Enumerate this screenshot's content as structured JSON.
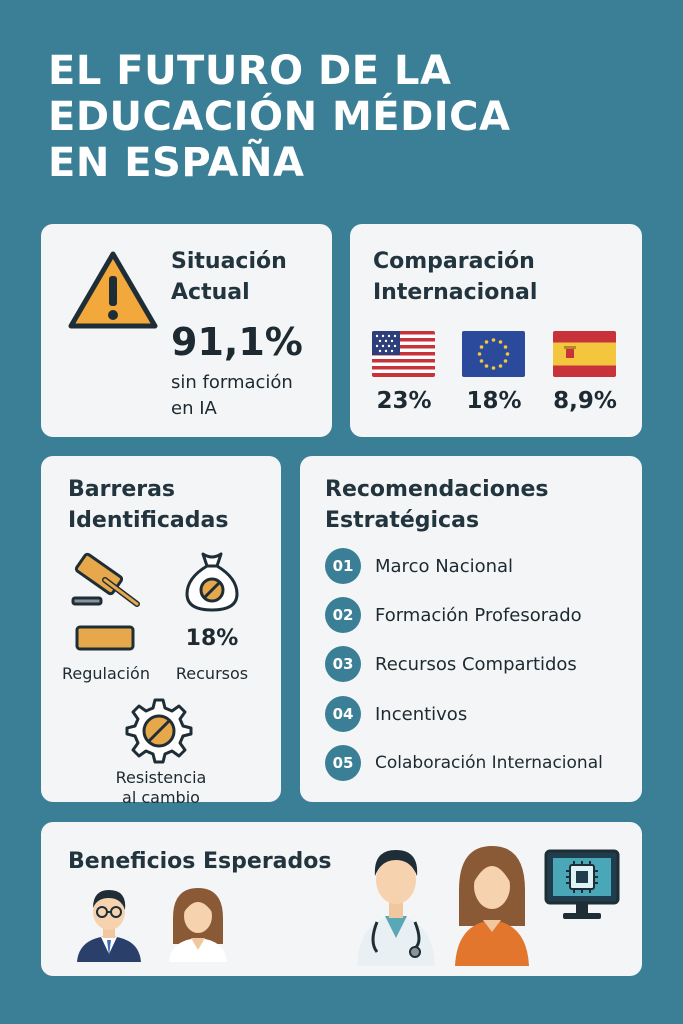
{
  "title": {
    "line1": "EL FUTURO DE LA",
    "line2": "EDUCACIÓN MÉDICA",
    "line3": "EN ESPAÑA"
  },
  "situacion": {
    "heading_line1": "Situación",
    "heading_line2": "Actual",
    "value": "91,1%",
    "desc_line1": "sin formación",
    "desc_line2": "en IA",
    "icon": "warning-triangle-icon",
    "icon_color": "#f2a83b"
  },
  "comparacion": {
    "heading_line1": "Comparación",
    "heading_line2": "Internacional",
    "countries": [
      {
        "flag": "usa-flag-icon",
        "value": "23%"
      },
      {
        "flag": "eu-flag-icon",
        "value": "18%"
      },
      {
        "flag": "spain-flag-icon",
        "value": "8,9%"
      }
    ]
  },
  "barreras": {
    "heading_line1": "Barreras",
    "heading_line2": "Identificadas",
    "items": [
      {
        "icon": "gavel-icon",
        "label": "Regulación"
      },
      {
        "icon": "money-bag-icon",
        "value": "18%",
        "label": "Recursos"
      },
      {
        "icon": "gear-blocked-icon",
        "label_line1": "Resistencia",
        "label_line2": "al cambio"
      }
    ]
  },
  "recomendaciones": {
    "heading_line1": "Recomendaciones",
    "heading_line2": "Estratégicas",
    "items": [
      {
        "num": "01",
        "text": "Marco Nacional"
      },
      {
        "num": "02",
        "text": "Formación Profesorado"
      },
      {
        "num": "03",
        "text": "Recursos Compartidos"
      },
      {
        "num": "04",
        "text": "Incentivos"
      },
      {
        "num": "05",
        "text": "Colaboración Internacional"
      }
    ]
  },
  "beneficios": {
    "heading": "Beneficios Esperados",
    "icons": [
      "man-glasses-icon",
      "woman-icon",
      "doctor-icon",
      "woman-student-icon",
      "ai-chip-monitor-icon"
    ]
  },
  "colors": {
    "background": "#3b7f96",
    "card": "#f3f5f6",
    "accent": "#3b7f96",
    "warning": "#f2a83b"
  }
}
